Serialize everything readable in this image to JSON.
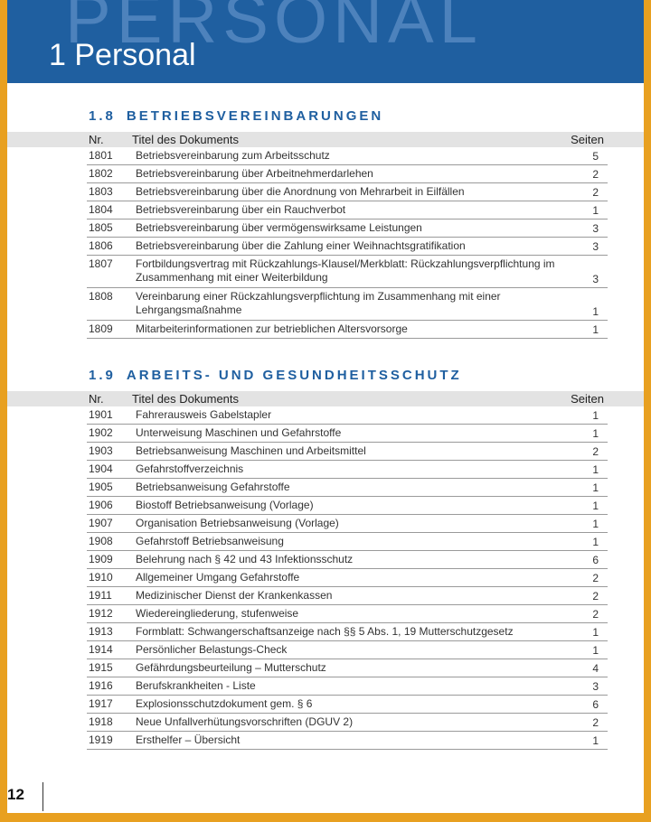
{
  "banner": {
    "watermark": "PERSONAL",
    "title": "1 Personal"
  },
  "columns": {
    "nr": "Nr.",
    "title": "Titel des Dokuments",
    "pages": "Seiten"
  },
  "sections": [
    {
      "number": "1.8",
      "heading": "BETRIEBSVEREINBARUNGEN",
      "rows": [
        {
          "nr": "1801",
          "title": "Betriebsvereinbarung zum Arbeitsschutz",
          "pages": "5"
        },
        {
          "nr": "1802",
          "title": "Betriebsvereinbarung über Arbeitnehmerdarlehen",
          "pages": "2"
        },
        {
          "nr": "1803",
          "title": "Betriebsvereinbarung über die Anordnung von Mehrarbeit in Eilfällen",
          "pages": "2"
        },
        {
          "nr": "1804",
          "title": "Betriebsvereinbarung über ein Rauchverbot",
          "pages": "1"
        },
        {
          "nr": "1805",
          "title": "Betriebsvereinbarung über vermögenswirksame Leistungen",
          "pages": "3"
        },
        {
          "nr": "1806",
          "title": "Betriebsvereinbarung über die Zahlung einer Weihnachtsgratifikation",
          "pages": "3"
        },
        {
          "nr": "1807",
          "title": "Fortbildungsvertrag mit Rückzahlungs-Klausel/Merkblatt: Rückzahlungsverpflichtung im Zusammenhang mit einer Weiterbildung",
          "pages": "3"
        },
        {
          "nr": "1808",
          "title": "Vereinbarung einer Rückzahlungsverpflichtung im Zusammenhang mit einer Lehrgangsmaßnahme",
          "pages": "1"
        },
        {
          "nr": "1809",
          "title": "Mitarbeiterinformationen zur betrieblichen Altersvorsorge",
          "pages": "1"
        }
      ]
    },
    {
      "number": "1.9",
      "heading": "ARBEITS- UND GESUNDHEITSSCHUTZ",
      "rows": [
        {
          "nr": "1901",
          "title": "Fahrerausweis Gabelstapler",
          "pages": "1"
        },
        {
          "nr": "1902",
          "title": "Unterweisung Maschinen und Gefahrstoffe",
          "pages": "1"
        },
        {
          "nr": "1903",
          "title": "Betriebsanweisung Maschinen und Arbeitsmittel",
          "pages": "2"
        },
        {
          "nr": "1904",
          "title": "Gefahrstoffverzeichnis",
          "pages": "1"
        },
        {
          "nr": "1905",
          "title": "Betriebsanweisung Gefahrstoffe",
          "pages": "1"
        },
        {
          "nr": "1906",
          "title": "Biostoff Betriebsanweisung (Vorlage)",
          "pages": "1"
        },
        {
          "nr": "1907",
          "title": "Organisation Betriebsanweisung (Vorlage)",
          "pages": "1"
        },
        {
          "nr": "1908",
          "title": "Gefahrstoff Betriebsanweisung",
          "pages": "1"
        },
        {
          "nr": "1909",
          "title": "Belehrung nach § 42 und 43 Infektionsschutz",
          "pages": "6"
        },
        {
          "nr": "1910",
          "title": "Allgemeiner Umgang Gefahrstoffe",
          "pages": "2"
        },
        {
          "nr": "1911",
          "title": "Medizinischer Dienst der Krankenkassen",
          "pages": "2"
        },
        {
          "nr": "1912",
          "title": "Wiedereingliederung, stufenweise",
          "pages": "2"
        },
        {
          "nr": "1913",
          "title": "Formblatt: Schwangerschaftsanzeige nach §§ 5 Abs. 1, 19 Mutterschutzgesetz",
          "pages": "1"
        },
        {
          "nr": "1914",
          "title": "Persönlicher Belastungs-Check",
          "pages": "1"
        },
        {
          "nr": "1915",
          "title": "Gefährdungsbeurteilung – Mutterschutz",
          "pages": "4"
        },
        {
          "nr": "1916",
          "title": "Berufskrankheiten - Liste",
          "pages": "3"
        },
        {
          "nr": "1917",
          "title": "Explosionsschutzdokument gem. § 6",
          "pages": "6"
        },
        {
          "nr": "1918",
          "title": "Neue Unfallverhütungsvorschriften (DGUV 2)",
          "pages": "2"
        },
        {
          "nr": "1919",
          "title": "Ersthelfer – Übersicht",
          "pages": "1"
        }
      ]
    }
  ],
  "footer": {
    "page_number": "12"
  }
}
